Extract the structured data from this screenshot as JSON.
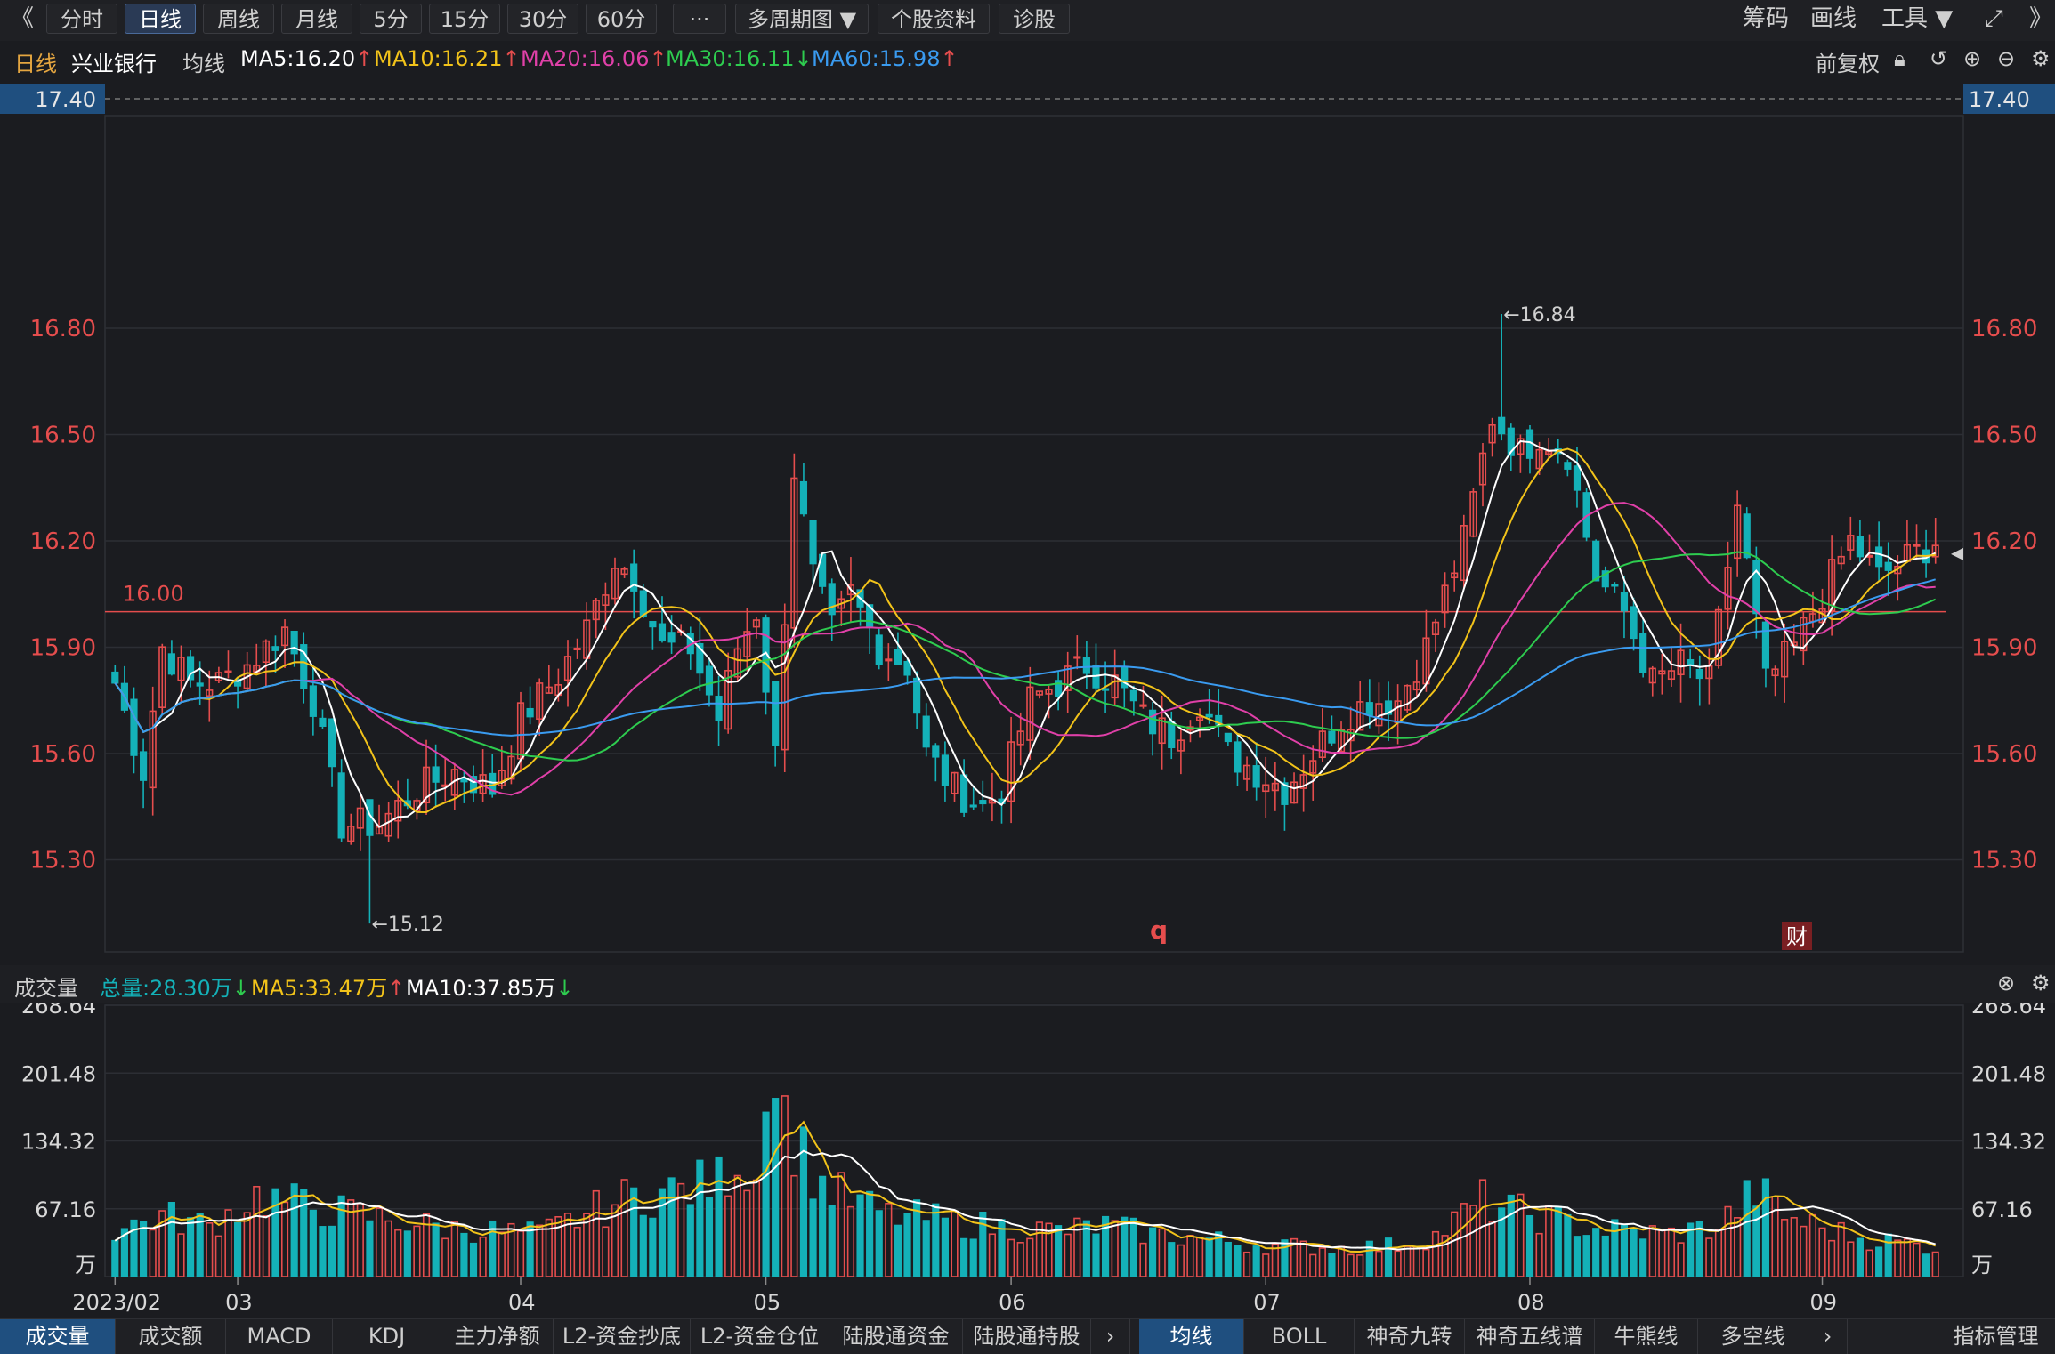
{
  "toolbar": {
    "back": "《",
    "buttons": [
      "分时",
      "日线",
      "周线",
      "月线",
      "5分",
      "15分",
      "30分",
      "60分",
      "···",
      "多周期图 ▼",
      "个股资料",
      "诊股"
    ],
    "active_index": 1,
    "right": [
      "筹码",
      "画线",
      "工具 ▼"
    ],
    "forward": "》"
  },
  "legend": {
    "period": "日线",
    "stock_name": "兴业银行",
    "ma_label": "均线",
    "ma5": "MA5:16.20",
    "ma10": "MA10:16.21",
    "ma20": "MA20:16.06",
    "ma30": "MA30:16.11",
    "ma60": "MA60:15.98",
    "adjust": "前复权"
  },
  "colors": {
    "up": "#e54d4d",
    "down": "#14b1b8",
    "ma5": "#ffffff",
    "ma10": "#f2c31a",
    "ma20": "#e040a8",
    "ma30": "#2ecc4f",
    "ma60": "#3a9bf0"
  },
  "price_axis": {
    "ticks": [
      "16.80",
      "16.50",
      "16.20",
      "15.90",
      "15.60",
      "15.30"
    ],
    "top": "17.40",
    "ref_line": "16.00"
  },
  "annotations": {
    "high": "←16.84",
    "low": "←15.12",
    "marker_q": "q",
    "marker_cai": "财"
  },
  "volume": {
    "label": "成交量",
    "total": "总量:28.30万",
    "ma5": "MA5:33.47万",
    "ma10": "MA10:37.85万",
    "ticks": [
      "268.64",
      "201.48",
      "134.32",
      "67.16"
    ],
    "unit": "万"
  },
  "x_axis": {
    "labels": [
      "2023/02",
      "03",
      "04",
      "05",
      "06",
      "07",
      "08",
      "09"
    ]
  },
  "bottom_tabs": {
    "left": [
      "成交量",
      "成交额",
      "MACD",
      "KDJ",
      "主力净额",
      "L2-资金抄底",
      "L2-资金仓位",
      "陆股通资金",
      "陆股通持股"
    ],
    "right": [
      "均线",
      "BOLL",
      "神奇九转",
      "神奇五线谱",
      "牛熊线",
      "多空线"
    ],
    "manage": "指标管理"
  },
  "chart_data": {
    "type": "candlestick",
    "title": "兴业银行 日线",
    "ylim": [
      15.04,
      17.4
    ],
    "volume_ylim": [
      0,
      268.64
    ],
    "month_labels": [
      "2023/02",
      "03",
      "04",
      "05",
      "06",
      "07",
      "08",
      "09"
    ],
    "month_start_index": [
      0,
      13,
      43,
      69,
      95,
      122,
      150,
      181
    ],
    "high_marker": 16.84,
    "low_marker": 15.12,
    "reference_price": 16.0,
    "close_waypoints": [
      [
        0,
        15.8
      ],
      [
        3,
        15.55
      ],
      [
        5,
        15.9
      ],
      [
        8,
        15.8
      ],
      [
        11,
        15.8
      ],
      [
        14,
        15.85
      ],
      [
        18,
        15.95
      ],
      [
        21,
        15.75
      ],
      [
        24,
        15.4
      ],
      [
        28,
        15.4
      ],
      [
        32,
        15.5
      ],
      [
        36,
        15.55
      ],
      [
        40,
        15.5
      ],
      [
        43,
        15.7
      ],
      [
        47,
        15.82
      ],
      [
        50,
        15.95
      ],
      [
        53,
        16.15
      ],
      [
        55,
        16.1
      ],
      [
        58,
        15.9
      ],
      [
        61,
        15.9
      ],
      [
        64,
        15.7
      ],
      [
        66,
        15.9
      ],
      [
        68,
        16.0
      ],
      [
        70,
        15.6
      ],
      [
        72,
        16.4
      ],
      [
        74,
        16.1
      ],
      [
        76,
        15.95
      ],
      [
        78,
        16.05
      ],
      [
        81,
        15.9
      ],
      [
        84,
        15.85
      ],
      [
        86,
        15.6
      ],
      [
        89,
        15.5
      ],
      [
        92,
        15.45
      ],
      [
        94,
        15.5
      ],
      [
        97,
        15.75
      ],
      [
        100,
        15.8
      ],
      [
        103,
        15.85
      ],
      [
        106,
        15.8
      ],
      [
        109,
        15.7
      ],
      [
        112,
        15.65
      ],
      [
        115,
        15.75
      ],
      [
        118,
        15.6
      ],
      [
        121,
        15.55
      ],
      [
        124,
        15.5
      ],
      [
        127,
        15.6
      ],
      [
        130,
        15.7
      ],
      [
        133,
        15.75
      ],
      [
        136,
        15.75
      ],
      [
        139,
        15.9
      ],
      [
        143,
        16.2
      ],
      [
        146,
        16.55
      ],
      [
        149,
        16.45
      ],
      [
        151,
        16.5
      ],
      [
        154,
        16.45
      ],
      [
        157,
        16.1
      ],
      [
        160,
        16.0
      ],
      [
        163,
        15.8
      ],
      [
        166,
        15.85
      ],
      [
        169,
        15.8
      ],
      [
        172,
        16.3
      ],
      [
        175,
        15.8
      ],
      [
        178,
        15.9
      ],
      [
        181,
        16.05
      ],
      [
        184,
        16.2
      ],
      [
        187,
        16.1
      ],
      [
        190,
        16.15
      ],
      [
        193,
        16.2
      ]
    ],
    "volume_waypoints": [
      [
        0,
        45
      ],
      [
        5,
        60
      ],
      [
        10,
        50
      ],
      [
        15,
        80
      ],
      [
        20,
        70
      ],
      [
        25,
        62
      ],
      [
        30,
        55
      ],
      [
        35,
        48
      ],
      [
        40,
        45
      ],
      [
        45,
        42
      ],
      [
        50,
        62
      ],
      [
        55,
        80
      ],
      [
        60,
        85
      ],
      [
        64,
        95
      ],
      [
        66,
        120
      ],
      [
        68,
        95
      ],
      [
        69,
        230
      ],
      [
        71,
        160
      ],
      [
        73,
        120
      ],
      [
        75,
        90
      ],
      [
        78,
        75
      ],
      [
        82,
        60
      ],
      [
        86,
        58
      ],
      [
        90,
        52
      ],
      [
        95,
        48
      ],
      [
        100,
        45
      ],
      [
        105,
        50
      ],
      [
        110,
        42
      ],
      [
        115,
        38
      ],
      [
        120,
        32
      ],
      [
        125,
        30
      ],
      [
        130,
        28
      ],
      [
        135,
        30
      ],
      [
        140,
        40
      ],
      [
        145,
        75
      ],
      [
        148,
        65
      ],
      [
        152,
        58
      ],
      [
        156,
        48
      ],
      [
        160,
        45
      ],
      [
        165,
        42
      ],
      [
        170,
        50
      ],
      [
        174,
        85
      ],
      [
        177,
        60
      ],
      [
        181,
        48
      ],
      [
        185,
        38
      ],
      [
        190,
        33
      ],
      [
        193,
        28
      ]
    ],
    "series": [
      {
        "name": "MA5",
        "period": 5
      },
      {
        "name": "MA10",
        "period": 10
      },
      {
        "name": "MA20",
        "period": 20
      },
      {
        "name": "MA30",
        "period": 30
      },
      {
        "name": "MA60",
        "period": 60
      }
    ]
  }
}
